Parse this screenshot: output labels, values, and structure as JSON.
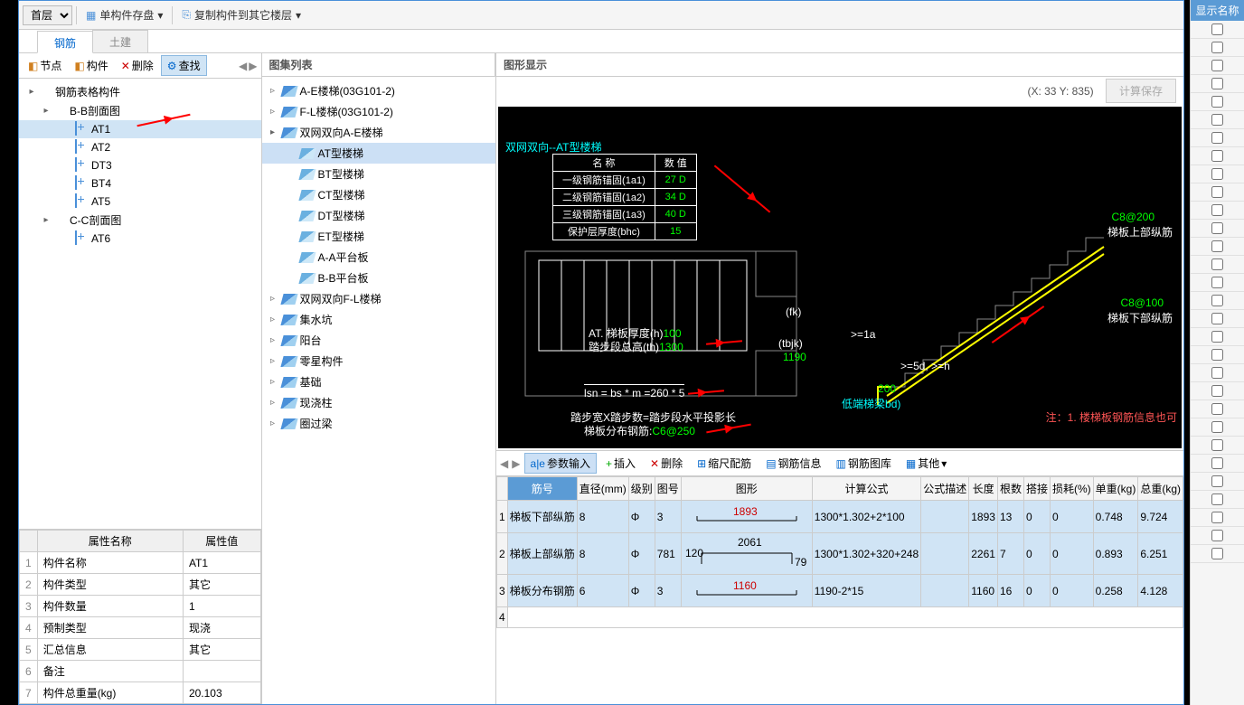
{
  "topbar": {
    "floor_select": "首层",
    "save_component": "单构件存盘",
    "copy_to_floors": "复制构件到其它楼层"
  },
  "tabs": {
    "rebar": "钢筋",
    "civil": "土建"
  },
  "toolbar2": {
    "node": "节点",
    "component": "构件",
    "delete": "删除",
    "find": "查找"
  },
  "tree": {
    "root": "钢筋表格构件",
    "section_bb": "B-B剖面图",
    "items_bb": [
      "AT1",
      "AT2",
      "DT3",
      "BT4",
      "AT5"
    ],
    "section_cc": "C-C剖面图",
    "items_cc": [
      "AT6"
    ]
  },
  "props": {
    "header_name": "属性名称",
    "header_value": "属性值",
    "rows": [
      {
        "n": "1",
        "k": "构件名称",
        "v": "AT1"
      },
      {
        "n": "2",
        "k": "构件类型",
        "v": "其它"
      },
      {
        "n": "3",
        "k": "构件数量",
        "v": "1"
      },
      {
        "n": "4",
        "k": "预制类型",
        "v": "现浇"
      },
      {
        "n": "5",
        "k": "汇总信息",
        "v": "其它"
      },
      {
        "n": "6",
        "k": "备注",
        "v": ""
      },
      {
        "n": "7",
        "k": "构件总重量(kg)",
        "v": "20.103"
      }
    ]
  },
  "gallery": {
    "title": "图集列表",
    "groups": [
      {
        "label": "A-E楼梯(03G101-2)",
        "expanded": false
      },
      {
        "label": "F-L楼梯(03G101-2)",
        "expanded": false
      },
      {
        "label": "双网双向A-E楼梯",
        "expanded": true,
        "children": [
          "AT型楼梯",
          "BT型楼梯",
          "CT型楼梯",
          "DT型楼梯",
          "ET型楼梯",
          "A-A平台板",
          "B-B平台板"
        ]
      },
      {
        "label": "双网双向F-L楼梯",
        "expanded": false
      },
      {
        "label": "集水坑",
        "expanded": false
      },
      {
        "label": "阳台",
        "expanded": false
      },
      {
        "label": "零星构件",
        "expanded": false
      },
      {
        "label": "基础",
        "expanded": false
      },
      {
        "label": "现浇柱",
        "expanded": false
      },
      {
        "label": "圈过梁",
        "expanded": false
      }
    ],
    "selected": "AT型楼梯"
  },
  "graph": {
    "title": "图形显示",
    "coords": "(X: 33 Y: 835)",
    "calc_save": "计算保存",
    "caption": "双网双向--AT型楼梯",
    "param_table": {
      "h_name": "名  称",
      "h_value": "数  值",
      "rows": [
        {
          "k": "一级钢筋锚固(1a1)",
          "v": "27 D"
        },
        {
          "k": "二级钢筋锚固(1a2)",
          "v": "34 D"
        },
        {
          "k": "三级钢筋锚固(1a3)",
          "v": "40 D"
        },
        {
          "k": "保护层厚度(bhc)",
          "v": "15"
        }
      ]
    },
    "labels": {
      "thickness": "AT. 梯板厚度(h)",
      "thickness_v": "100",
      "step_h": "踏步段总高(th)",
      "step_h_v": "1300",
      "fk": "(fk)",
      "tbjk": "(tbjk)",
      "tbjk_v": "1190",
      "lsn": "lsn = bs * m =260 * 5",
      "step_formula": "踏步宽X踏步数=踏步段水平投影长",
      "dist_rebar": "梯板分布钢筋:",
      "dist_rebar_v": "C6@250",
      "top_rebar": "C8@200",
      "top_rebar_label": "梯板上部纵筋",
      "bot_rebar": "C8@100",
      "bot_rebar_label": "梯板下部纵筋",
      "la": ">=1a",
      "d5": ">=5d, >=h",
      "v200": "200",
      "low_beam": "低端梯梁bd)",
      "note": "注：1. 楼梯板钢筋信息也可"
    }
  },
  "btoolbar": {
    "param_input": "参数输入",
    "insert": "插入",
    "delete": "删除",
    "scale": "缩尺配筋",
    "rebar_info": "钢筋信息",
    "rebar_lib": "钢筋图库",
    "other": "其他"
  },
  "grid": {
    "headers": [
      "筋号",
      "直径(mm)",
      "级别",
      "图号",
      "图形",
      "计算公式",
      "公式描述",
      "长度",
      "根数",
      "搭接",
      "损耗(%)",
      "单重(kg)",
      "总重(kg)"
    ],
    "rows": [
      {
        "n": "1",
        "name": "梯板下部纵筋",
        "dia": "8",
        "grade": "Φ",
        "fig": "3",
        "shape_val": "1893",
        "shape_color": "#cc0000",
        "formula": "1300*1.302+2*100",
        "desc": "",
        "len": "1893",
        "count": "13",
        "lap": "0",
        "loss": "0",
        "uw": "0.748",
        "tw": "9.724"
      },
      {
        "n": "2",
        "name": "梯板上部纵筋",
        "dia": "8",
        "grade": "Φ",
        "fig": "781",
        "shape_val": "2061",
        "shape_left": "120",
        "shape_right": "79",
        "formula": "1300*1.302+320+248",
        "desc": "",
        "len": "2261",
        "count": "7",
        "lap": "0",
        "loss": "0",
        "uw": "0.893",
        "tw": "6.251"
      },
      {
        "n": "3",
        "name": "梯板分布钢筋",
        "dia": "6",
        "grade": "Φ",
        "fig": "3",
        "shape_val": "1160",
        "shape_color": "#cc0000",
        "formula": "1190-2*15",
        "desc": "",
        "len": "1160",
        "count": "16",
        "lap": "0",
        "loss": "0",
        "uw": "0.258",
        "tw": "4.128"
      }
    ]
  },
  "right_sidebar": {
    "header": "显示名称",
    "checkbox_count": 30
  }
}
